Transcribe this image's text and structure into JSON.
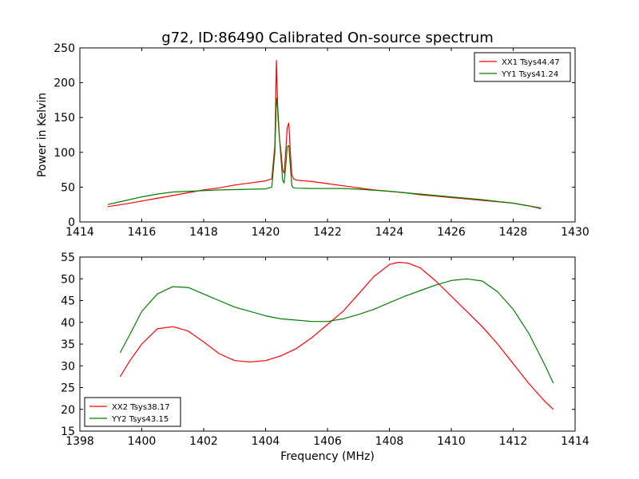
{
  "title": "g72, ID:86490 Calibrated On-source spectrum",
  "chart_data": [
    {
      "type": "line",
      "title": "g72, ID:86490 Calibrated On-source spectrum",
      "xlabel": "",
      "ylabel": "Power in Kelvin",
      "xlim": [
        1414,
        1430
      ],
      "ylim": [
        0,
        250
      ],
      "xticks": [
        "1414",
        "1416",
        "1418",
        "1420",
        "1422",
        "1424",
        "1426",
        "1428",
        "1430"
      ],
      "yticks": [
        "0",
        "50",
        "100",
        "150",
        "200",
        "250"
      ],
      "legend_position": "top-right",
      "grid": false,
      "series": [
        {
          "name": "XX1 Tsys44.47",
          "color": "#ff0000",
          "x": [
            1414.9,
            1415.5,
            1416,
            1416.5,
            1417,
            1417.5,
            1418,
            1418.5,
            1419,
            1419.5,
            1420,
            1420.2,
            1420.3,
            1420.35,
            1420.4,
            1420.45,
            1420.5,
            1420.55,
            1420.6,
            1420.65,
            1420.7,
            1420.75,
            1420.8,
            1420.85,
            1420.9,
            1421,
            1421.5,
            1422,
            1422.5,
            1423,
            1423.5,
            1424,
            1424.5,
            1425,
            1425.5,
            1426,
            1426.5,
            1427,
            1427.5,
            1428,
            1428.5,
            1428.9
          ],
          "y": [
            22,
            26,
            30,
            34,
            38,
            42,
            46,
            49,
            53,
            56,
            59,
            62,
            110,
            232,
            150,
            120,
            100,
            75,
            70,
            100,
            135,
            142,
            100,
            68,
            62,
            60,
            58,
            55,
            52,
            49,
            46,
            44,
            42,
            39,
            37,
            35,
            33,
            31,
            29,
            27,
            23,
            20
          ]
        },
        {
          "name": "YY1 Tsys41.24",
          "color": "#008000",
          "x": [
            1414.9,
            1415.5,
            1416,
            1416.5,
            1417,
            1417.5,
            1418,
            1418.5,
            1419,
            1419.5,
            1420,
            1420.2,
            1420.3,
            1420.35,
            1420.4,
            1420.45,
            1420.5,
            1420.55,
            1420.6,
            1420.65,
            1420.7,
            1420.75,
            1420.8,
            1420.85,
            1420.9,
            1421,
            1421.5,
            1422,
            1422.5,
            1423,
            1423.5,
            1424,
            1424.5,
            1425,
            1425.5,
            1426,
            1426.5,
            1427,
            1427.5,
            1428,
            1428.5,
            1428.9
          ],
          "y": [
            25,
            31,
            36,
            40,
            43,
            44,
            45,
            46,
            46.5,
            47,
            47.5,
            50,
            100,
            178,
            160,
            120,
            90,
            60,
            56,
            80,
            108,
            110,
            80,
            52,
            49,
            48.5,
            48,
            48,
            48,
            47,
            45.5,
            44,
            42,
            40,
            38,
            36,
            34,
            32,
            29.5,
            27,
            23,
            19
          ]
        }
      ]
    },
    {
      "type": "line",
      "title": "",
      "xlabel": "Frequency (MHz)",
      "ylabel": "",
      "xlim": [
        1398,
        1414
      ],
      "ylim": [
        15,
        55
      ],
      "xticks": [
        "1398",
        "1400",
        "1402",
        "1404",
        "1406",
        "1408",
        "1410",
        "1412",
        "1414"
      ],
      "yticks": [
        "15",
        "20",
        "25",
        "30",
        "35",
        "40",
        "45",
        "50",
        "55"
      ],
      "legend_position": "bottom-left",
      "grid": false,
      "series": [
        {
          "name": "XX2 Tsys38.17",
          "color": "#ff0000",
          "x": [
            1399.3,
            1399.6,
            1400,
            1400.5,
            1401,
            1401.5,
            1402,
            1402.5,
            1403,
            1403.5,
            1404,
            1404.5,
            1405,
            1405.5,
            1406,
            1406.5,
            1407,
            1407.5,
            1408,
            1408.3,
            1408.6,
            1409,
            1409.5,
            1410,
            1410.5,
            1411,
            1411.5,
            1412,
            1412.5,
            1413,
            1413.3
          ],
          "y": [
            27.5,
            31,
            35,
            38.5,
            39,
            38,
            35.5,
            32.8,
            31.2,
            30.9,
            31.2,
            32.3,
            34,
            36.5,
            39.5,
            42.5,
            46.5,
            50.5,
            53.3,
            53.8,
            53.6,
            52.5,
            49.5,
            46,
            42.5,
            39,
            35,
            30.5,
            26,
            22,
            20
          ]
        },
        {
          "name": "YY2 Tsys43.15",
          "color": "#008000",
          "x": [
            1399.3,
            1399.6,
            1400,
            1400.5,
            1401,
            1401.5,
            1402,
            1402.5,
            1403,
            1403.5,
            1404,
            1404.5,
            1405,
            1405.5,
            1406,
            1406.5,
            1407,
            1407.5,
            1408,
            1408.5,
            1409,
            1409.5,
            1410,
            1410.5,
            1411,
            1411.5,
            1412,
            1412.5,
            1413,
            1413.3
          ],
          "y": [
            33,
            37,
            42.5,
            46.5,
            48.2,
            48,
            46.5,
            45,
            43.5,
            42.5,
            41.5,
            40.8,
            40.5,
            40.2,
            40.2,
            40.8,
            41.8,
            43,
            44.5,
            46,
            47.3,
            48.6,
            49.6,
            50,
            49.5,
            47,
            43,
            37.5,
            30.5,
            26
          ]
        }
      ]
    }
  ]
}
